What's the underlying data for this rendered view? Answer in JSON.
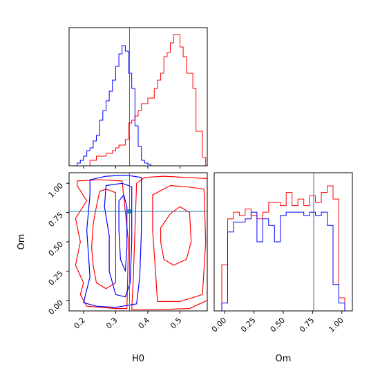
{
  "colors": {
    "series_a": "#ff0000",
    "series_b": "#0000ff",
    "truth": "#1f77b4",
    "axes": "#000000"
  },
  "chart_data": [
    {
      "type": "histogram",
      "panel": "H0 marginal",
      "x_tick_labels": [
        "0.2",
        "0.3",
        "0.4",
        "0.5"
      ],
      "xlim": [
        0.155,
        0.585
      ],
      "truth": 0.345,
      "x": [
        0.185,
        0.195,
        0.205,
        0.215,
        0.225,
        0.235,
        0.245,
        0.255,
        0.265,
        0.275,
        0.285,
        0.295,
        0.305,
        0.315,
        0.325,
        0.335,
        0.345,
        0.355,
        0.365,
        0.375,
        0.385,
        0.395,
        0.405,
        0.415,
        0.425,
        0.435,
        0.445,
        0.455,
        0.465,
        0.475,
        0.485,
        0.495,
        0.505,
        0.515,
        0.525,
        0.535,
        0.545,
        0.555,
        0.565,
        0.575
      ],
      "series": [
        {
          "color": "red",
          "values": [
            0,
            0,
            0,
            0,
            4,
            4,
            7,
            7,
            7,
            9,
            9,
            11,
            13,
            15,
            15,
            19,
            31,
            33,
            36,
            40,
            45,
            45,
            49,
            49,
            56,
            62,
            67,
            79,
            82,
            89,
            95,
            95,
            86,
            79,
            67,
            67,
            56,
            25,
            25,
            6
          ]
        },
        {
          "color": "blue",
          "values": [
            2,
            4,
            7,
            11,
            13,
            18,
            22,
            33,
            40,
            47,
            54,
            62,
            72,
            81,
            87,
            83,
            67,
            56,
            29,
            14,
            4,
            2,
            1,
            0,
            0,
            0,
            0,
            0,
            0,
            0,
            0,
            0,
            0,
            0,
            0,
            0,
            0,
            0,
            0,
            0
          ]
        }
      ]
    },
    {
      "type": "contour",
      "panel": "H0 vs Om joint",
      "xlabel": "H0",
      "ylabel": "Om",
      "x_tick_labels": [
        "0.2",
        "0.3",
        "0.4",
        "0.5"
      ],
      "y_tick_labels": [
        "0.00",
        "0.25",
        "0.50",
        "0.75",
        "1.00"
      ],
      "xlim": [
        0.155,
        0.585
      ],
      "ylim": [
        -0.09,
        1.09
      ],
      "truth": {
        "H0": 0.345,
        "Om": 0.74
      },
      "series": [
        {
          "color": "red",
          "levels": [
            [
              [
                0.39,
                1.05
              ],
              [
                0.45,
                1.06
              ],
              [
                0.52,
                1.05
              ],
              [
                0.585,
                1.04
              ],
              [
                0.585,
                0.0
              ],
              [
                0.53,
                -0.07
              ],
              [
                0.42,
                -0.08
              ],
              [
                0.35,
                -0.08
              ],
              [
                0.355,
                0.2
              ],
              [
                0.36,
                0.6
              ],
              [
                0.365,
                1.0
              ]
            ],
            [
              [
                0.415,
                0.9
              ],
              [
                0.47,
                0.98
              ],
              [
                0.52,
                0.97
              ],
              [
                0.575,
                0.95
              ],
              [
                0.58,
                0.5
              ],
              [
                0.57,
                0.05
              ],
              [
                0.5,
                -0.01
              ],
              [
                0.43,
                -0.01
              ],
              [
                0.425,
                0.2
              ],
              [
                0.415,
                0.6
              ]
            ],
            [
              [
                0.44,
                0.62
              ],
              [
                0.47,
                0.74
              ],
              [
                0.5,
                0.8
              ],
              [
                0.53,
                0.75
              ],
              [
                0.535,
                0.5
              ],
              [
                0.52,
                0.35
              ],
              [
                0.48,
                0.3
              ],
              [
                0.45,
                0.35
              ],
              [
                0.44,
                0.5
              ]
            ],
            [
              [
                0.32,
                1.02
              ],
              [
                0.25,
                1.03
              ],
              [
                0.18,
                1.02
              ],
              [
                0.18,
                0.98
              ],
              [
                0.21,
                0.85
              ],
              [
                0.175,
                0.7
              ],
              [
                0.19,
                0.5
              ],
              [
                0.175,
                0.3
              ],
              [
                0.2,
                0.15
              ],
              [
                0.19,
                0.05
              ],
              [
                0.21,
                -0.05
              ],
              [
                0.3,
                -0.07
              ],
              [
                0.335,
                -0.07
              ],
              [
                0.34,
                0.5
              ]
            ],
            [
              [
                0.3,
                0.92
              ],
              [
                0.27,
                0.95
              ],
              [
                0.25,
                0.93
              ],
              [
                0.24,
                0.8
              ],
              [
                0.23,
                0.65
              ],
              [
                0.225,
                0.45
              ],
              [
                0.23,
                0.3
              ],
              [
                0.24,
                0.15
              ],
              [
                0.27,
                0.1
              ],
              [
                0.3,
                0.15
              ]
            ]
          ]
        },
        {
          "color": "blue",
          "levels": [
            [
              [
                0.22,
                1.03
              ],
              [
                0.27,
                1.06
              ],
              [
                0.33,
                1.07
              ],
              [
                0.38,
                1.05
              ],
              [
                0.38,
                0.6
              ],
              [
                0.375,
                0.2
              ],
              [
                0.365,
                -0.03
              ],
              [
                0.3,
                -0.06
              ],
              [
                0.24,
                -0.05
              ],
              [
                0.2,
                -0.02
              ],
              [
                0.22,
                0.2
              ],
              [
                0.21,
                0.6
              ],
              [
                0.22,
                0.9
              ]
            ],
            [
              [
                0.27,
                0.98
              ],
              [
                0.32,
                1.0
              ],
              [
                0.35,
                0.97
              ],
              [
                0.35,
                0.5
              ],
              [
                0.345,
                0.15
              ],
              [
                0.33,
                0.03
              ],
              [
                0.3,
                0.05
              ],
              [
                0.28,
                0.25
              ],
              [
                0.28,
                0.55
              ],
              [
                0.265,
                0.8
              ]
            ],
            [
              [
                0.31,
                0.85
              ],
              [
                0.325,
                0.9
              ],
              [
                0.335,
                0.8
              ],
              [
                0.335,
                0.45
              ],
              [
                0.33,
                0.25
              ],
              [
                0.315,
                0.35
              ],
              [
                0.31,
                0.6
              ]
            ]
          ]
        }
      ]
    },
    {
      "type": "histogram",
      "panel": "Om marginal",
      "xlabel": "Om",
      "x_tick_labels": [
        "0.00",
        "0.25",
        "0.50",
        "0.75",
        "1.00"
      ],
      "xlim": [
        -0.09,
        1.09
      ],
      "truth": 0.74,
      "x": [
        0.0,
        0.05,
        0.1,
        0.15,
        0.2,
        0.25,
        0.3,
        0.35,
        0.4,
        0.45,
        0.5,
        0.55,
        0.6,
        0.65,
        0.7,
        0.75,
        0.8,
        0.85,
        0.9,
        0.95,
        1.0
      ],
      "series": [
        {
          "color": "red",
          "values": [
            70,
            140,
            150,
            145,
            155,
            145,
            140,
            150,
            165,
            165,
            160,
            180,
            160,
            170,
            160,
            175,
            165,
            180,
            190,
            170,
            20
          ]
        },
        {
          "color": "blue",
          "values": [
            12,
            120,
            135,
            135,
            140,
            150,
            105,
            140,
            130,
            105,
            145,
            150,
            150,
            150,
            145,
            150,
            145,
            150,
            130,
            40,
            12
          ]
        }
      ]
    }
  ]
}
